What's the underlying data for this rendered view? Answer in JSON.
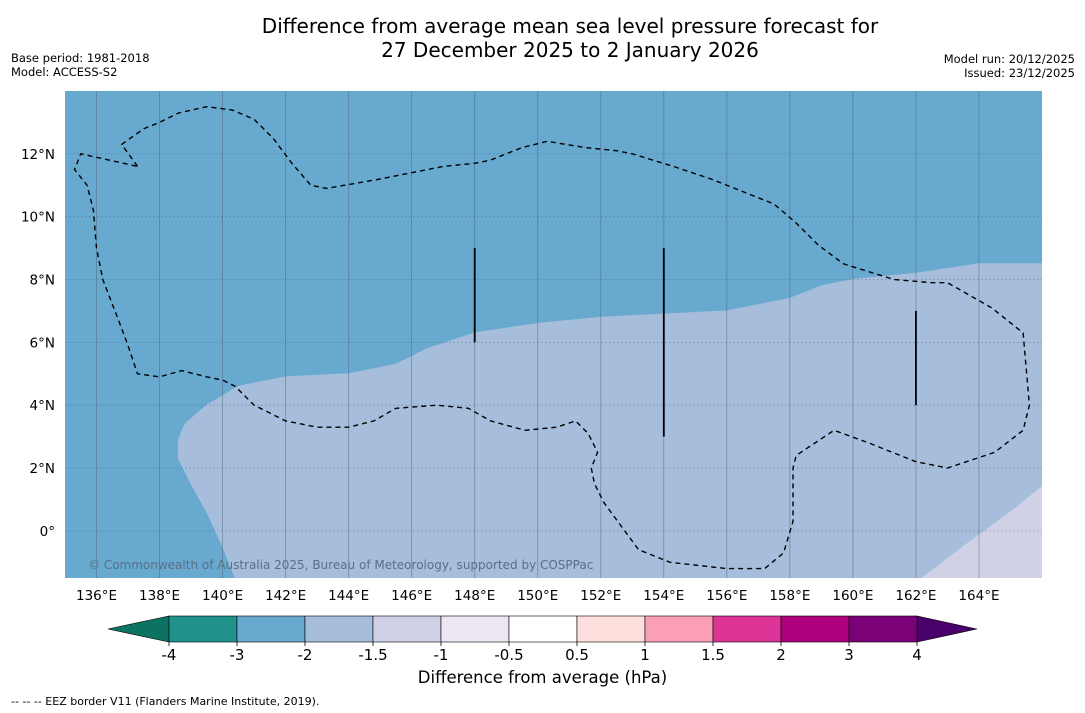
{
  "title": {
    "line1": "Difference from average mean sea level pressure forecast for",
    "line2": "27 December 2025 to 2 January 2026"
  },
  "meta_left": {
    "base_period": "Base period: 1981-2018",
    "model": "Model: ACCESS-S2"
  },
  "meta_right": {
    "model_run": "Model run: 20/12/2025",
    "issued": "Issued: 23/12/2025"
  },
  "copyright": "© Commonwealth of Australia 2025, Bureau of Meteorology, supported by COSPPac",
  "footnote": "--  --  -- EEZ border V11 (Flanders Marine Institute, 2019).",
  "colorbar_label": "Difference from average (hPa)",
  "chart_data": {
    "type": "heatmap",
    "title": "Difference from average mean sea level pressure forecast for 27 December 2025 to 2 January 2026",
    "xlabel": "",
    "ylabel": "",
    "xlim": [
      135,
      166
    ],
    "ylim": [
      -1.5,
      14
    ],
    "x_ticks": [
      136,
      138,
      140,
      142,
      144,
      146,
      148,
      150,
      152,
      154,
      156,
      158,
      160,
      162,
      164
    ],
    "x_tick_labels": [
      "136°E",
      "138°E",
      "140°E",
      "142°E",
      "144°E",
      "146°E",
      "148°E",
      "150°E",
      "152°E",
      "154°E",
      "156°E",
      "158°E",
      "160°E",
      "162°E",
      "164°E"
    ],
    "y_ticks": [
      0,
      2,
      4,
      6,
      8,
      10,
      12
    ],
    "y_tick_labels": [
      "0°",
      "2°N",
      "4°N",
      "6°N",
      "8°N",
      "10°N",
      "12°N"
    ],
    "grid": true,
    "colorbar": {
      "units": "hPa",
      "ticks": [
        "-4",
        "-3",
        "-2",
        "-1.5",
        "-1",
        "-0.5",
        "0.5",
        "1",
        "1.5",
        "2",
        "3",
        "4"
      ],
      "bins": [
        {
          "from": -4,
          "to": -3,
          "color": "#21918c"
        },
        {
          "from": -3,
          "to": -2,
          "color": "#67a9cf"
        },
        {
          "from": -2,
          "to": -1.5,
          "color": "#a6bddb"
        },
        {
          "from": -1.5,
          "to": -1,
          "color": "#d0d1e6"
        },
        {
          "from": -1,
          "to": -0.5,
          "color": "#ece7f2"
        },
        {
          "from": -0.5,
          "to": 0.5,
          "color": "#ffffff"
        },
        {
          "from": 0.5,
          "to": 1,
          "color": "#fde0dd"
        },
        {
          "from": 1,
          "to": 1.5,
          "color": "#fa9fb5"
        },
        {
          "from": 1.5,
          "to": 2,
          "color": "#dd3497"
        },
        {
          "from": 2,
          "to": 3,
          "color": "#ae017e"
        },
        {
          "from": 3,
          "to": 4,
          "color": "#7a0177"
        }
      ],
      "under_color": "#0c7363",
      "over_color": "#49006a"
    },
    "regions": [
      {
        "name": "-3 to -2 hPa",
        "color": "#67a9cf",
        "polygon": [
          [
            135,
            14
          ],
          [
            166,
            14
          ],
          [
            166,
            8.5
          ],
          [
            164,
            8.5
          ],
          [
            162,
            8.2
          ],
          [
            160,
            8.0
          ],
          [
            159,
            7.8
          ],
          [
            158,
            7.4
          ],
          [
            156,
            7.0
          ],
          [
            154,
            6.9
          ],
          [
            152,
            6.8
          ],
          [
            150,
            6.6
          ],
          [
            148,
            6.3
          ],
          [
            146.5,
            5.8
          ],
          [
            145.5,
            5.3
          ],
          [
            144,
            5.0
          ],
          [
            142,
            4.9
          ],
          [
            140.5,
            4.6
          ],
          [
            139.5,
            4.0
          ],
          [
            138.8,
            3.4
          ],
          [
            138.6,
            2.9
          ],
          [
            138.6,
            2.3
          ],
          [
            139,
            1.5
          ],
          [
            139.5,
            0.6
          ],
          [
            140,
            -0.5
          ],
          [
            140.4,
            -1.5
          ],
          [
            135,
            -1.5
          ]
        ]
      },
      {
        "name": "-2 to -1.5 hPa",
        "color": "#a6bddb",
        "polygon": [
          [
            166,
            8.5
          ],
          [
            164,
            8.5
          ],
          [
            162,
            8.2
          ],
          [
            160,
            8.0
          ],
          [
            159,
            7.8
          ],
          [
            158,
            7.4
          ],
          [
            156,
            7.0
          ],
          [
            154,
            6.9
          ],
          [
            152,
            6.8
          ],
          [
            150,
            6.6
          ],
          [
            148,
            6.3
          ],
          [
            146.5,
            5.8
          ],
          [
            145.5,
            5.3
          ],
          [
            144,
            5.0
          ],
          [
            142,
            4.9
          ],
          [
            140.5,
            4.6
          ],
          [
            139.5,
            4.0
          ],
          [
            138.8,
            3.4
          ],
          [
            138.6,
            2.9
          ],
          [
            138.6,
            2.3
          ],
          [
            139,
            1.5
          ],
          [
            139.5,
            0.6
          ],
          [
            140,
            -0.5
          ],
          [
            140.4,
            -1.5
          ],
          [
            162.2,
            -1.5
          ],
          [
            163.5,
            -0.5
          ],
          [
            165,
            0.6
          ],
          [
            166,
            1.4
          ]
        ]
      },
      {
        "name": "-1.5 to -1 hPa",
        "color": "#d0d1e6",
        "polygon": [
          [
            162.2,
            -1.5
          ],
          [
            163.5,
            -0.5
          ],
          [
            165,
            0.6
          ],
          [
            166,
            1.4
          ],
          [
            166,
            -1.5
          ]
        ]
      }
    ],
    "eez_borders": [
      [
        [
          137.3,
          11.6
        ],
        [
          136.8,
          12.3
        ],
        [
          137.5,
          12.8
        ],
        [
          138.0,
          13.0
        ],
        [
          138.6,
          13.3
        ],
        [
          139.5,
          13.5
        ],
        [
          140.3,
          13.4
        ],
        [
          141.0,
          13.1
        ],
        [
          141.6,
          12.5
        ],
        [
          142.2,
          11.7
        ],
        [
          142.8,
          11.0
        ],
        [
          143.3,
          10.9
        ],
        [
          145,
          11.2
        ],
        [
          147,
          11.6
        ],
        [
          148,
          11.7
        ],
        [
          148.5,
          11.8
        ],
        [
          149.5,
          12.2
        ],
        [
          150.3,
          12.4
        ],
        [
          151.5,
          12.2
        ],
        [
          152.5,
          12.1
        ],
        [
          153,
          12.0
        ],
        [
          154.3,
          11.6
        ],
        [
          155.5,
          11.2
        ],
        [
          156.5,
          10.8
        ],
        [
          157.5,
          10.4
        ],
        [
          158.2,
          9.8
        ],
        [
          158.9,
          9.1
        ],
        [
          159.7,
          8.5
        ],
        [
          161.3,
          8.0
        ],
        [
          162.5,
          7.9
        ],
        [
          163.0,
          7.9
        ],
        [
          164.4,
          7.1
        ],
        [
          165.4,
          6.3
        ],
        [
          165.6,
          4.0
        ],
        [
          165.4,
          3.2
        ],
        [
          164.5,
          2.5
        ],
        [
          163.0,
          2.0
        ],
        [
          162.0,
          2.2
        ],
        [
          161.0,
          2.6
        ],
        [
          160.5,
          2.8
        ],
        [
          159.4,
          3.2
        ],
        [
          158.5,
          2.6
        ],
        [
          158.2,
          2.4
        ],
        [
          158.1,
          2.0
        ],
        [
          158.1,
          0.3
        ],
        [
          157.8,
          -0.7
        ],
        [
          157.2,
          -1.2
        ],
        [
          156.0,
          -1.2
        ],
        [
          154.2,
          -1.0
        ],
        [
          153.2,
          -0.6
        ],
        [
          152.1,
          0.9
        ],
        [
          151.8,
          1.5
        ],
        [
          151.7,
          2.0
        ],
        [
          151.9,
          2.5
        ],
        [
          151.6,
          3.1
        ],
        [
          151.2,
          3.5
        ],
        [
          150.6,
          3.3
        ],
        [
          149.6,
          3.2
        ],
        [
          148.5,
          3.5
        ],
        [
          147.8,
          3.9
        ],
        [
          146.8,
          4.0
        ],
        [
          145.5,
          3.9
        ],
        [
          144.8,
          3.5
        ],
        [
          144.0,
          3.3
        ],
        [
          143.0,
          3.3
        ],
        [
          142.0,
          3.5
        ],
        [
          141.0,
          4.0
        ],
        [
          140.4,
          4.6
        ],
        [
          140.0,
          4.8
        ],
        [
          139.5,
          4.9
        ],
        [
          138.7,
          5.1
        ],
        [
          138.0,
          4.9
        ],
        [
          137.3,
          5.0
        ],
        [
          137.0,
          5.9
        ],
        [
          136.7,
          6.7
        ],
        [
          136.2,
          8.0
        ],
        [
          136.0,
          9.0
        ],
        [
          135.9,
          10.2
        ],
        [
          135.7,
          11.0
        ],
        [
          135.3,
          11.5
        ],
        [
          135.5,
          12.0
        ]
      ]
    ],
    "vertical_boundary_lines": [
      {
        "lon": 148,
        "lat_from": 6,
        "lat_to": 9
      },
      {
        "lon": 154,
        "lat_from": 3,
        "lat_to": 9
      },
      {
        "lon": 162,
        "lat_from": 4,
        "lat_to": 7
      }
    ]
  }
}
